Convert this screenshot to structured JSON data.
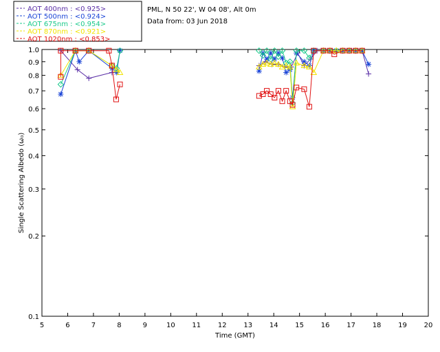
{
  "chart_data": {
    "type": "line",
    "title": "",
    "info_lines": [
      "PML, N 50 22', W 04 08', Alt 0m",
      "Data from: 03 Jun 2018"
    ],
    "xlabel": "Time (GMT)",
    "ylabel": "Single Scattering Albedo (ω₀)",
    "xlim": [
      5,
      20
    ],
    "ylim": [
      0.1,
      1.0
    ],
    "yscale": "log",
    "x_ticks": [
      5,
      6,
      7,
      8,
      9,
      10,
      11,
      12,
      13,
      14,
      15,
      16,
      17,
      18,
      19,
      20
    ],
    "y_ticks": [
      0.1,
      0.2,
      0.3,
      0.4,
      0.5,
      0.6,
      0.7,
      0.8,
      0.9,
      1.0
    ],
    "y_tick_labels": [
      "0.1",
      "0.2",
      "0.3",
      "0.4",
      "0.5",
      "0.6",
      "0.7",
      "0.8",
      "0.9",
      "1.0"
    ],
    "grid": false,
    "legend_position": "top-left outside",
    "series": [
      {
        "name": "AOT  400nm : <0.925>",
        "color": "#5a2ea6",
        "marker": "plus",
        "points": [
          [
            5.73,
            0.99
          ],
          [
            6.38,
            0.84
          ],
          [
            6.82,
            0.78
          ],
          [
            7.72,
            0.82
          ],
          [
            13.43,
            0.87
          ],
          [
            13.68,
            0.9
          ],
          [
            13.93,
            0.88
          ],
          [
            14.18,
            0.88
          ],
          [
            14.43,
            0.86
          ],
          [
            14.68,
            0.86
          ],
          [
            14.93,
            0.97
          ],
          [
            15.18,
            0.87
          ],
          [
            15.43,
            0.92
          ],
          [
            15.68,
            0.99
          ],
          [
            15.93,
            0.99
          ],
          [
            16.18,
            0.99
          ],
          [
            16.43,
            0.99
          ],
          [
            16.68,
            0.99
          ],
          [
            16.93,
            0.99
          ],
          [
            17.18,
            0.99
          ],
          [
            17.43,
            0.99
          ],
          [
            17.68,
            0.81
          ]
        ]
      },
      {
        "name": "AOT  500nm : <0.924>",
        "color": "#1a44d6",
        "marker": "star",
        "points": [
          [
            5.73,
            0.68
          ],
          [
            6.3,
            0.99
          ],
          [
            6.45,
            0.9
          ],
          [
            6.82,
            0.99
          ],
          [
            7.72,
            0.85
          ],
          [
            7.9,
            0.82
          ],
          [
            8.03,
            0.99
          ],
          [
            13.43,
            0.83
          ],
          [
            13.58,
            0.97
          ],
          [
            13.73,
            0.92
          ],
          [
            13.88,
            0.97
          ],
          [
            14.03,
            0.92
          ],
          [
            14.18,
            0.97
          ],
          [
            14.33,
            0.93
          ],
          [
            14.48,
            0.82
          ],
          [
            14.63,
            0.84
          ],
          [
            14.73,
            0.66
          ],
          [
            14.88,
            0.97
          ],
          [
            15.18,
            0.9
          ],
          [
            15.38,
            0.87
          ],
          [
            15.55,
            0.99
          ],
          [
            15.93,
            0.99
          ],
          [
            16.18,
            0.99
          ],
          [
            16.43,
            0.99
          ],
          [
            16.68,
            0.99
          ],
          [
            16.93,
            0.99
          ],
          [
            17.18,
            0.99
          ],
          [
            17.43,
            0.99
          ],
          [
            17.68,
            0.88
          ]
        ]
      },
      {
        "name": "AOT  675nm : <0.954>",
        "color": "#19c98a",
        "marker": "diamond",
        "points": [
          [
            5.73,
            0.74
          ],
          [
            6.3,
            0.99
          ],
          [
            6.82,
            0.99
          ],
          [
            7.72,
            0.87
          ],
          [
            7.9,
            0.85
          ],
          [
            8.03,
            0.99
          ],
          [
            13.43,
            0.99
          ],
          [
            13.58,
            0.95
          ],
          [
            13.73,
            0.99
          ],
          [
            13.88,
            0.92
          ],
          [
            14.03,
            0.99
          ],
          [
            14.18,
            0.94
          ],
          [
            14.33,
            0.99
          ],
          [
            14.48,
            0.89
          ],
          [
            14.63,
            0.9
          ],
          [
            14.73,
            0.63
          ],
          [
            14.88,
            0.99
          ],
          [
            15.18,
            0.99
          ],
          [
            15.38,
            0.93
          ],
          [
            15.55,
            0.99
          ],
          [
            15.93,
            0.99
          ],
          [
            16.18,
            0.99
          ],
          [
            16.43,
            0.99
          ],
          [
            16.68,
            0.99
          ],
          [
            16.93,
            0.99
          ],
          [
            17.18,
            0.99
          ],
          [
            17.43,
            0.99
          ]
        ]
      },
      {
        "name": "AOT  870nm : <0.921>",
        "color": "#f2e400",
        "marker": "triangle",
        "points": [
          [
            5.73,
            0.8
          ],
          [
            6.3,
            0.99
          ],
          [
            6.82,
            0.99
          ],
          [
            7.72,
            0.87
          ],
          [
            7.9,
            0.84
          ],
          [
            8.03,
            0.82
          ],
          [
            13.43,
            0.86
          ],
          [
            13.58,
            0.88
          ],
          [
            13.73,
            0.89
          ],
          [
            13.88,
            0.88
          ],
          [
            14.03,
            0.89
          ],
          [
            14.18,
            0.88
          ],
          [
            14.33,
            0.86
          ],
          [
            14.48,
            0.87
          ],
          [
            14.63,
            0.86
          ],
          [
            14.73,
            0.61
          ],
          [
            14.88,
            0.89
          ],
          [
            15.18,
            0.87
          ],
          [
            15.38,
            0.86
          ],
          [
            15.55,
            0.82
          ],
          [
            15.93,
            0.99
          ],
          [
            16.18,
            0.99
          ],
          [
            16.43,
            0.99
          ],
          [
            16.68,
            0.99
          ],
          [
            16.93,
            0.99
          ],
          [
            17.18,
            0.99
          ],
          [
            17.43,
            0.99
          ]
        ]
      },
      {
        "name": "AOT 1020nm : <0.853>",
        "color": "#e01010",
        "marker": "square",
        "points": [
          [
            5.73,
            0.79
          ],
          [
            5.73,
            0.99
          ],
          [
            6.3,
            0.99
          ],
          [
            6.82,
            0.99
          ],
          [
            7.6,
            0.99
          ],
          [
            7.72,
            0.87
          ],
          [
            7.88,
            0.65
          ],
          [
            8.03,
            0.74
          ],
          [
            13.43,
            0.67
          ],
          [
            13.58,
            0.68
          ],
          [
            13.73,
            0.7
          ],
          [
            13.88,
            0.68
          ],
          [
            14.03,
            0.66
          ],
          [
            14.18,
            0.7
          ],
          [
            14.33,
            0.64
          ],
          [
            14.48,
            0.7
          ],
          [
            14.63,
            0.64
          ],
          [
            14.73,
            0.62
          ],
          [
            14.88,
            0.72
          ],
          [
            15.18,
            0.71
          ],
          [
            15.38,
            0.61
          ],
          [
            15.55,
            0.99
          ],
          [
            15.93,
            0.99
          ],
          [
            16.18,
            0.99
          ],
          [
            16.35,
            0.96
          ],
          [
            16.68,
            0.99
          ],
          [
            16.93,
            0.99
          ],
          [
            17.18,
            0.99
          ],
          [
            17.43,
            0.99
          ]
        ]
      }
    ]
  }
}
